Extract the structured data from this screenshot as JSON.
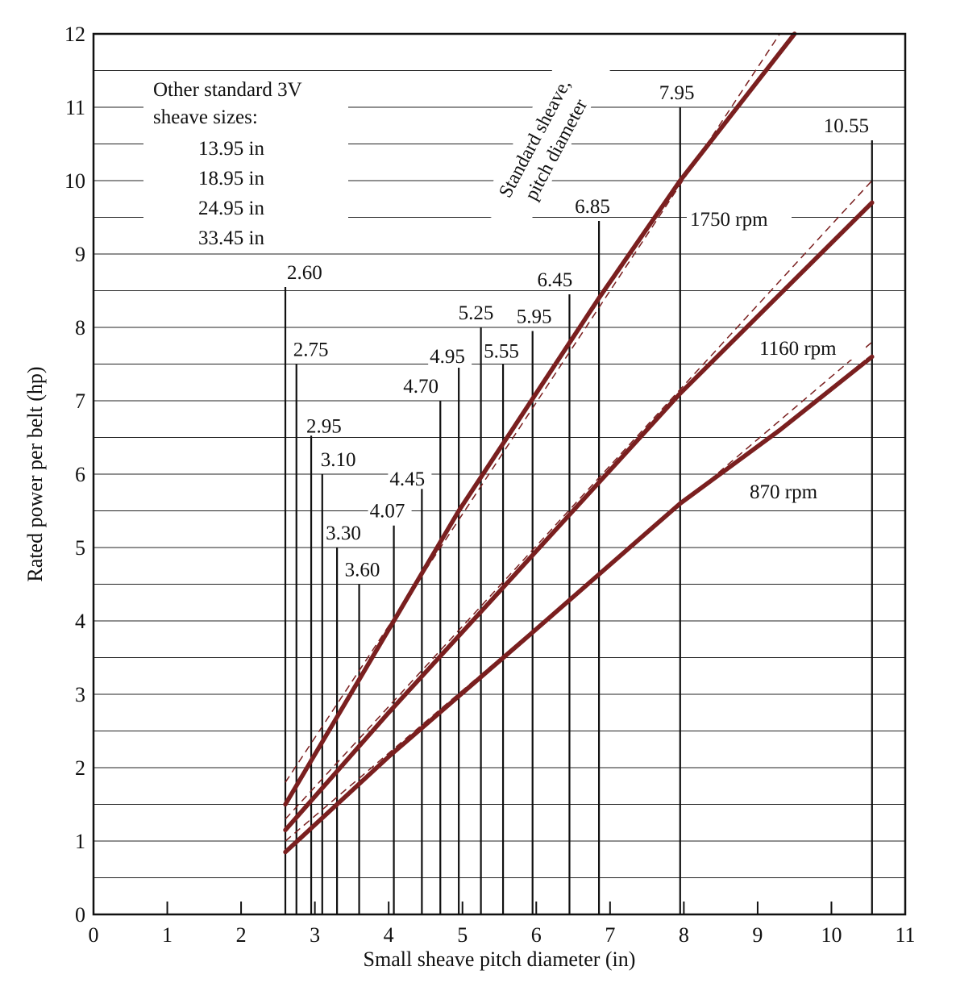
{
  "chart_data": {
    "type": "line",
    "title": "",
    "xlabel": "Small sheave pitch diameter (in)",
    "ylabel": "Rated power per belt (hp)",
    "xlim": [
      0,
      11
    ],
    "ylim": [
      0,
      12
    ],
    "x_ticks": [
      "0",
      "1",
      "2",
      "3",
      "4",
      "5",
      "6",
      "7",
      "8",
      "9",
      "10",
      "11"
    ],
    "y_ticks": [
      "0",
      "1",
      "2",
      "3",
      "4",
      "5",
      "6",
      "7",
      "8",
      "9",
      "10",
      "11",
      "12"
    ],
    "grid": "horizontal",
    "series": [
      {
        "name": "1750 rpm",
        "color": "#7a1f1f",
        "x": [
          2.6,
          3.6,
          4.95,
          6.85,
          7.95,
          9.5
        ],
        "y": [
          1.5,
          3.2,
          5.5,
          8.4,
          10.0,
          12.0
        ],
        "dashed_x": [
          2.6,
          9.3
        ],
        "dashed_y": [
          1.8,
          12.0
        ]
      },
      {
        "name": "1160 rpm",
        "color": "#7a1f1f",
        "x": [
          2.6,
          4.0,
          5.5,
          7.95,
          10.55
        ],
        "y": [
          1.15,
          2.75,
          4.4,
          7.1,
          9.7
        ],
        "dashed_x": [
          2.6,
          10.55
        ],
        "dashed_y": [
          1.3,
          10.0
        ]
      },
      {
        "name": "870 rpm",
        "color": "#7a1f1f",
        "x": [
          2.6,
          4.0,
          5.9,
          7.95,
          9.3,
          10.55
        ],
        "y": [
          0.85,
          2.15,
          3.8,
          5.6,
          6.6,
          7.6
        ],
        "dashed_x": [
          2.6,
          10.55
        ],
        "dashed_y": [
          1.0,
          7.8
        ]
      }
    ],
    "sheaves": [
      {
        "label": "2.60",
        "x": 2.6,
        "top": 8.55
      },
      {
        "label": "2.75",
        "x": 2.75,
        "top": 7.5
      },
      {
        "label": "2.95",
        "x": 2.95,
        "top": 6.7
      },
      {
        "label": "3.10",
        "x": 3.1,
        "top": 6.0
      },
      {
        "label": "3.30",
        "x": 3.3,
        "top": 5.0
      },
      {
        "label": "3.60",
        "x": 3.6,
        "top": 4.5
      },
      {
        "label": "4.07",
        "x": 4.07,
        "top": 5.3
      },
      {
        "label": "4.45",
        "x": 4.45,
        "top": 5.8
      },
      {
        "label": "4.70",
        "x": 4.7,
        "top": 7.0
      },
      {
        "label": "4.95",
        "x": 4.95,
        "top": 7.45
      },
      {
        "label": "5.25",
        "x": 5.25,
        "top": 8.0
      },
      {
        "label": "5.55",
        "x": 5.55,
        "top": 7.5
      },
      {
        "label": "5.95",
        "x": 5.95,
        "top": 7.95
      },
      {
        "label": "6.45",
        "x": 6.45,
        "top": 8.45
      },
      {
        "label": "6.85",
        "x": 6.85,
        "top": 9.45
      },
      {
        "label": "7.95",
        "x": 7.95,
        "top": 11.0
      },
      {
        "label": "10.55",
        "x": 10.55,
        "top": 10.55
      }
    ],
    "annotations": {
      "other_sizes_title": "Other standard 3V",
      "other_sizes_subtitle": "sheave sizes:",
      "other_sizes": [
        "13.95 in",
        "18.95 in",
        "24.95 in",
        "33.45 in"
      ],
      "standard_line1": "Standard sheave,",
      "standard_line2": "pitch diameter"
    }
  }
}
